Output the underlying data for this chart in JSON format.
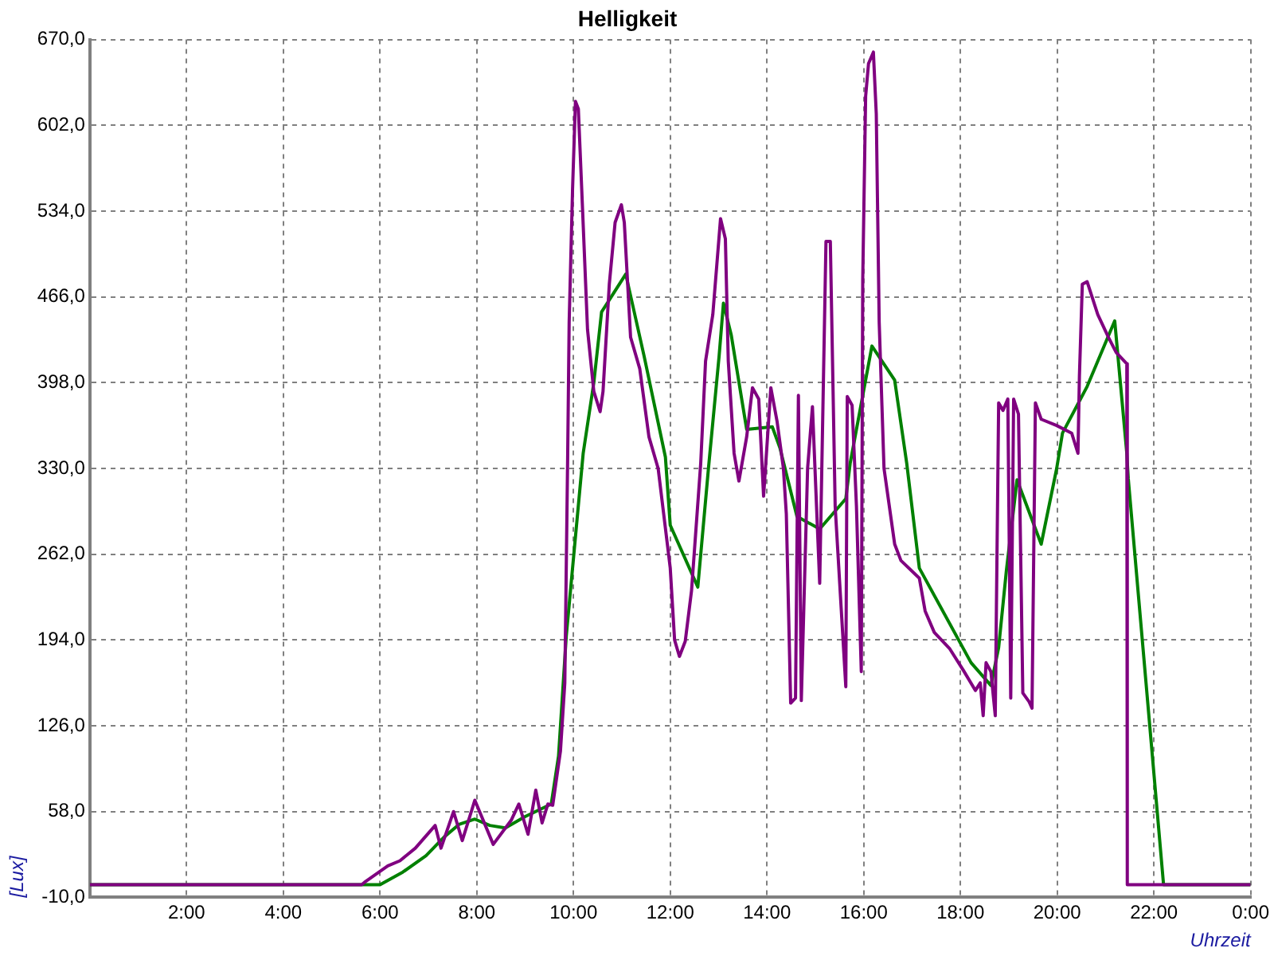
{
  "chart_data": {
    "type": "line",
    "title": "Helligkeit",
    "xlabel": "Uhrzeit",
    "ylabel": "[Lux]",
    "xlim": [
      0,
      24
    ],
    "xticks": [
      {
        "value": 0,
        "label": null
      },
      {
        "value": 2,
        "label": "2:00"
      },
      {
        "value": 4,
        "label": "4:00"
      },
      {
        "value": 6,
        "label": "6:00"
      },
      {
        "value": 8,
        "label": "8:00"
      },
      {
        "value": 10,
        "label": "10:00"
      },
      {
        "value": 12,
        "label": "12:00"
      },
      {
        "value": 14,
        "label": "14:00"
      },
      {
        "value": 16,
        "label": "16:00"
      },
      {
        "value": 18,
        "label": "18:00"
      },
      {
        "value": 20,
        "label": "20:00"
      },
      {
        "value": 22,
        "label": "22:00"
      },
      {
        "value": 24,
        "label": "0:00"
      }
    ],
    "ylim": [
      -10,
      670
    ],
    "yticks": [
      {
        "value": -10,
        "label": "-10,0"
      },
      {
        "value": 58,
        "label": "58,0"
      },
      {
        "value": 126,
        "label": "126,0"
      },
      {
        "value": 194,
        "label": "194,0"
      },
      {
        "value": 262,
        "label": "262,0"
      },
      {
        "value": 330,
        "label": "330,0"
      },
      {
        "value": 398,
        "label": "398,0"
      },
      {
        "value": 466,
        "label": "466,0"
      },
      {
        "value": 534,
        "label": "534,0"
      },
      {
        "value": 602,
        "label": "602,0"
      },
      {
        "value": 670,
        "label": "670,0"
      }
    ],
    "grid": true,
    "legend": false,
    "marker": "none",
    "line_style": "solid",
    "series": [
      {
        "color": "#800080",
        "x": [
          0,
          5.62,
          5.68,
          6.16,
          6.41,
          6.73,
          7.14,
          7.26,
          7.52,
          7.7,
          7.96,
          8.34,
          8.71,
          8.87,
          9.06,
          9.22,
          9.35,
          9.47,
          9.57,
          9.73,
          9.82,
          9.88,
          9.91,
          9.98,
          10.04,
          10.1,
          10.17,
          10.29,
          10.42,
          10.55,
          10.61,
          10.74,
          10.86,
          10.99,
          11.05,
          11.18,
          11.37,
          11.56,
          11.75,
          12,
          12.09,
          12.19,
          12.31,
          12.44,
          12.63,
          12.73,
          12.88,
          13.04,
          13.14,
          13.2,
          13.32,
          13.42,
          13.58,
          13.7,
          13.83,
          13.93,
          14.08,
          14.21,
          14.34,
          14.4,
          14.49,
          14.59,
          14.65,
          14.71,
          14.84,
          14.94,
          15.09,
          15.22,
          15.31,
          15.41,
          15.63,
          15.66,
          15.76,
          15.85,
          15.95,
          15.98,
          16.04,
          16.1,
          16.2,
          16.26,
          16.32,
          16.42,
          16.64,
          16.77,
          17.15,
          17.27,
          17.46,
          17.78,
          18.06,
          18.31,
          18.41,
          18.47,
          18.53,
          18.63,
          18.72,
          18.79,
          18.88,
          18.98,
          19.04,
          19.1,
          19.2,
          19.29,
          19.42,
          19.48,
          19.55,
          19.67,
          19.99,
          20.3,
          20.43,
          20.46,
          20.52,
          20.62,
          20.84,
          21.06,
          21.22,
          21.44,
          21.45,
          24
        ],
        "values": [
          0,
          0,
          2,
          15,
          19,
          29,
          47,
          29,
          58,
          35,
          67,
          32,
          51,
          64,
          40,
          75,
          49,
          64,
          63,
          106,
          160,
          342,
          446,
          551,
          621,
          615,
          551,
          440,
          391,
          375,
          391,
          476,
          525,
          539,
          525,
          434,
          409,
          355,
          330,
          251,
          194,
          181,
          193,
          233,
          334,
          415,
          452,
          528,
          512,
          415,
          342,
          320,
          355,
          394,
          385,
          308,
          394,
          367,
          330,
          294,
          144,
          148,
          388,
          146,
          330,
          379,
          239,
          510,
          510,
          300,
          157,
          387,
          380,
          300,
          169,
          480,
          625,
          651,
          660,
          611,
          446,
          330,
          270,
          257,
          243,
          217,
          200,
          187,
          170,
          154,
          160,
          134,
          176,
          169,
          134,
          382,
          376,
          385,
          148,
          385,
          373,
          152,
          145,
          140,
          382,
          369,
          364,
          358,
          342,
          403,
          476,
          478,
          452,
          434,
          422,
          413,
          0,
          0
        ]
      },
      {
        "color": "#008000",
        "x": [
          0,
          6,
          6.47,
          6.95,
          7.33,
          7.64,
          7.96,
          8.27,
          8.59,
          9,
          9.54,
          9.69,
          9.85,
          10.2,
          10.42,
          10.58,
          11.08,
          11.46,
          11.9,
          12,
          12.57,
          12.79,
          13.01,
          13.1,
          13.26,
          13.58,
          14.11,
          14.27,
          14.62,
          15.09,
          15.63,
          15.72,
          16.17,
          16.64,
          16.89,
          17.15,
          18.22,
          18.63,
          18.79,
          18.95,
          19.17,
          19.67,
          19.99,
          20.11,
          20.62,
          21.19,
          21.44,
          21.47,
          22.2,
          24
        ],
        "values": [
          0,
          0,
          10,
          23,
          38,
          48,
          52,
          47,
          45,
          54,
          64,
          102,
          197,
          342,
          398,
          454,
          484,
          419,
          339,
          285,
          236,
          330,
          419,
          461,
          436,
          361,
          363,
          346,
          292,
          282,
          306,
          334,
          427,
          400,
          334,
          251,
          176,
          158,
          188,
          249,
          321,
          270,
          330,
          358,
          395,
          447,
          342,
          322,
          0,
          0
        ]
      }
    ]
  }
}
